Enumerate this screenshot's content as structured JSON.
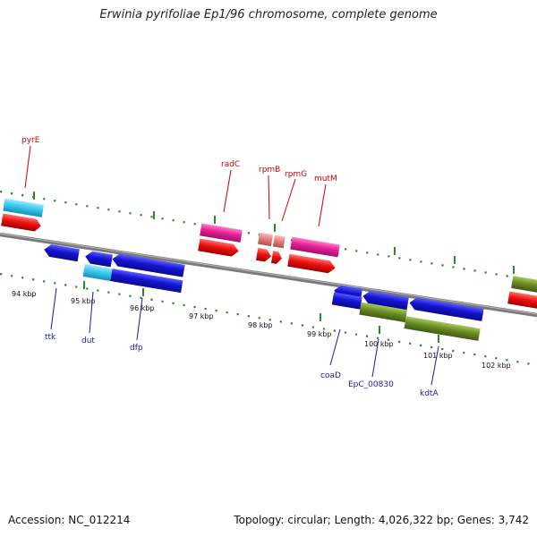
{
  "title": "Erwinia pyrifoliae Ep1/96 chromosome, complete genome",
  "footer": {
    "accession": "Accession: NC_012214",
    "summary": "Topology: circular; Length: 4,026,322 bp; Genes: 3,742"
  },
  "ticks": [
    "94 kbp",
    "95 kbp",
    "96 kbp",
    "97 kbp",
    "98 kbp",
    "99 kbp",
    "100 kbp",
    "101 kbp",
    "102 kbp"
  ],
  "genes_top": [
    "pyrE",
    "radC",
    "rpmB",
    "rpmG",
    "mutM"
  ],
  "genes_bottom": [
    "ttk",
    "dut",
    "dfp",
    "coaD",
    "EpC_00830",
    "kdtA"
  ],
  "colors": {
    "axis": "#7a7a7a",
    "tick": "#2a8a2a",
    "gene_blue": "#1414d2",
    "gene_cyan": "#38c8f0",
    "gene_magenta": "#e8209a",
    "gene_pink": "#e58080",
    "gene_red": "#ee1010",
    "gene_olive": "#6b8e23",
    "label_top": "#cc0000",
    "label_bottom": "#1a1aa8"
  }
}
